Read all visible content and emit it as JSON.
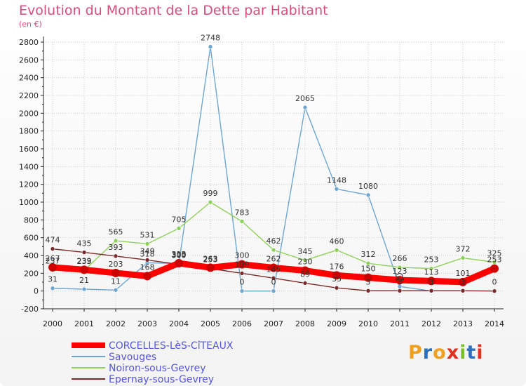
{
  "title": "Evolution du Montant de la Dette par Habitant",
  "unit": "(en €)",
  "logo": "Proxiti",
  "colors": {
    "axis": "#222222",
    "grid": "#cccccc",
    "title": "#d64f7a",
    "legend_text": "#5555dd"
  },
  "chart_data": {
    "type": "line",
    "title": "Evolution du Montant de la Dette par Habitant",
    "ylabel": "(en €)",
    "xlabel": "",
    "x": [
      "2000",
      "2001",
      "2002",
      "2003",
      "2004",
      "2005",
      "2006",
      "2007",
      "2008",
      "2009",
      "2010",
      "2011",
      "2012",
      "2013",
      "2014"
    ],
    "ylim": [
      -200,
      2800
    ],
    "yticks": [
      -200,
      0,
      200,
      400,
      600,
      800,
      1000,
      1200,
      1400,
      1600,
      1800,
      2000,
      2200,
      2400,
      2600,
      2800
    ],
    "grid": true,
    "legend": "bottom-left",
    "series": [
      {
        "name": "Savouges",
        "color": "#6fa6cf",
        "values": [
          31,
          21,
          11,
          318,
          309,
          2748,
          0,
          0,
          2065,
          1148,
          1080,
          51,
          0,
          null,
          null
        ],
        "labels": [
          "31",
          "21",
          "11",
          "318",
          "309",
          "2748",
          "0",
          "0",
          "2065",
          "1148",
          "1080",
          "51",
          "",
          "",
          ""
        ]
      },
      {
        "name": "Noiron-sous-Gevrey",
        "color": "#8fd05a",
        "values": [
          237,
          233,
          565,
          531,
          705,
          999,
          783,
          462,
          345,
          460,
          312,
          266,
          253,
          372,
          325
        ],
        "labels": [
          "237",
          "233",
          "565",
          "531",
          "705",
          "999",
          "783",
          "462",
          "345",
          "460",
          "312",
          "266",
          "253",
          "372",
          "325"
        ]
      },
      {
        "name": "Epernay-sous-Gevrey",
        "color": "#7a2a2a",
        "values": [
          474,
          435,
          393,
          349,
          300,
          253,
          199,
          145,
          89,
          35,
          3,
          3,
          3,
          3,
          0
        ],
        "labels": [
          "474",
          "435",
          "393",
          "349",
          "300",
          "253",
          "199",
          "145",
          "89",
          "35",
          "3",
          "3",
          "3",
          "3",
          "0"
        ]
      },
      {
        "name": "CORCELLES-LèS-CîTEAUX",
        "color": "#ff0000",
        "thick": true,
        "values": [
          267,
          239,
          203,
          168,
          313,
          263,
          300,
          262,
          230,
          176,
          150,
          123,
          113,
          101,
          253
        ],
        "labels": [
          "267",
          "239",
          "203",
          "168",
          "313",
          "263",
          "300",
          "262",
          "230",
          "176",
          "150",
          "123",
          "113",
          "101",
          "253"
        ]
      }
    ],
    "legend_order": [
      "CORCELLES-LèS-CîTEAUX",
      "Savouges",
      "Noiron-sous-Gevrey",
      "Epernay-sous-Gevrey"
    ]
  }
}
